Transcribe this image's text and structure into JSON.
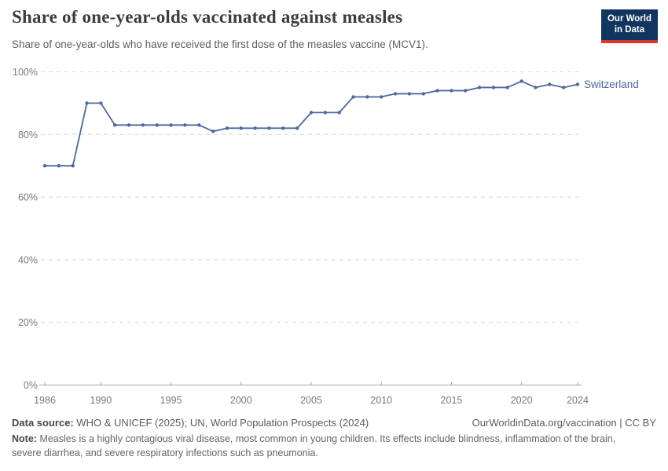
{
  "header": {
    "title": "Share of one-year-olds vaccinated against measles",
    "subtitle": "Share of one-year-olds who have received the first dose of the measles vaccine (MCV1).",
    "logo": {
      "line1": "Our World",
      "line2": "in Data"
    }
  },
  "chart_data": {
    "type": "line",
    "title": "Share of one-year-olds vaccinated against measles",
    "x": [
      1986,
      1987,
      1988,
      1989,
      1990,
      1991,
      1992,
      1993,
      1994,
      1995,
      1996,
      1997,
      1998,
      1999,
      2000,
      2001,
      2002,
      2003,
      2004,
      2005,
      2006,
      2007,
      2008,
      2009,
      2010,
      2011,
      2012,
      2013,
      2014,
      2015,
      2016,
      2017,
      2018,
      2019,
      2020,
      2021,
      2022,
      2023,
      2024
    ],
    "series": [
      {
        "name": "Switzerland",
        "color": "#4c6a9c",
        "values": [
          70,
          70,
          70,
          90,
          90,
          83,
          83,
          83,
          83,
          83,
          83,
          83,
          81,
          82,
          82,
          82,
          82,
          82,
          82,
          87,
          87,
          87,
          92,
          92,
          92,
          93,
          93,
          93,
          94,
          94,
          94,
          95,
          95,
          95,
          97,
          95,
          96,
          95,
          96
        ]
      }
    ],
    "xticks": [
      1986,
      1990,
      1995,
      2000,
      2005,
      2010,
      2015,
      2020,
      2024
    ],
    "yticks": [
      0,
      20,
      40,
      60,
      80,
      100
    ],
    "ytick_suffix": "%",
    "xlim": [
      1986,
      2024
    ],
    "ylim": [
      0,
      100
    ],
    "grid": "horizontal-dashed",
    "legend": "line-end-label"
  },
  "footer": {
    "source_label": "Data source:",
    "source_text": "WHO & UNICEF (2025); UN, World Population Prospects (2024)",
    "attribution": "OurWorldinData.org/vaccination | CC BY",
    "note_label": "Note:",
    "note_text": "Measles is a highly contagious viral disease, most common in young children. Its effects include blindness, inflammation of the brain, severe diarrhea, and severe respiratory infections such as pneumonia."
  },
  "theme": {
    "line_color": "#4c6a9c",
    "title_color": "#3d3d3d",
    "text_color": "#5b5b5b",
    "axis_text_color": "#7a7a7a",
    "grid_color": "#d6d6d6",
    "axis_color": "#a5a5a5",
    "logo_bg": "#12355f",
    "logo_stripe": "#dc352b"
  }
}
